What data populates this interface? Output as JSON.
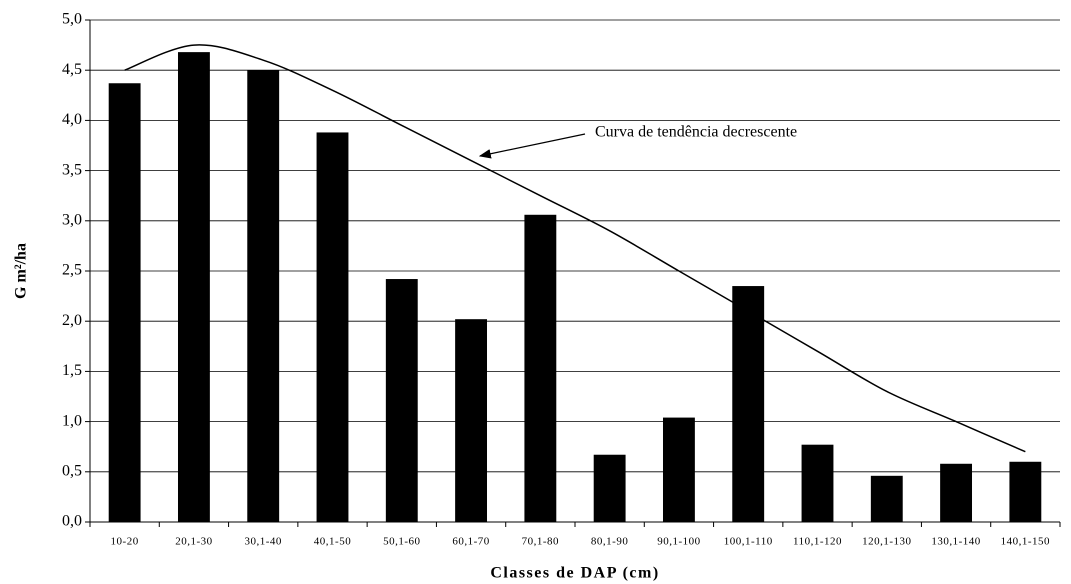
{
  "chart_data": {
    "type": "bar",
    "categories": [
      "10-20",
      "20,1-30",
      "30,1-40",
      "40,1-50",
      "50,1-60",
      "60,1-70",
      "70,1-80",
      "80,1-90",
      "90,1-100",
      "100,1-110",
      "110,1-120",
      "120,1-130",
      "130,1-140",
      "140,1-150"
    ],
    "values": [
      4.37,
      4.68,
      4.5,
      3.88,
      2.42,
      2.02,
      3.06,
      0.67,
      1.04,
      2.35,
      0.77,
      0.46,
      0.58,
      0.6
    ],
    "color": "#000000",
    "trend_values": [
      4.5,
      4.75,
      4.6,
      4.3,
      3.95,
      3.6,
      3.25,
      2.9,
      2.5,
      2.1,
      1.7,
      1.3,
      1.0,
      0.7
    ],
    "annotation": "Curva de tendência decrescente",
    "x_label": "Classes de DAP (cm)",
    "y_label": "G m²/ha",
    "ylim": [
      0,
      5
    ],
    "yticks": [
      {
        "value": 0,
        "label": "0,0"
      },
      {
        "value": 0.5,
        "label": "0,5"
      },
      {
        "value": 1,
        "label": "1,0"
      },
      {
        "value": 1.5,
        "label": "1,5"
      },
      {
        "value": 2,
        "label": "2,0"
      },
      {
        "value": 2.5,
        "label": "2,5"
      },
      {
        "value": 3,
        "label": "3,0"
      },
      {
        "value": 3.5,
        "label": "3,5"
      },
      {
        "value": 4,
        "label": "4,0"
      },
      {
        "value": 4.5,
        "label": "4,5"
      },
      {
        "value": 5,
        "label": "5,0"
      }
    ],
    "grid": true
  }
}
